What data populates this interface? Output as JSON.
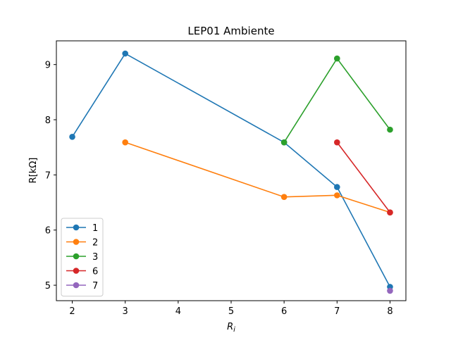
{
  "chart_data": {
    "type": "line",
    "title": "LEP01 Ambiente",
    "xlabel": "R",
    "xlabel_subscript": "i",
    "ylabel": "R[kΩ]",
    "xlim": [
      1.7,
      8.3
    ],
    "ylim": [
      4.72,
      9.43
    ],
    "xticks": [
      2,
      3,
      4,
      5,
      6,
      7,
      8
    ],
    "yticks": [
      5,
      6,
      7,
      8,
      9
    ],
    "grid": false,
    "legend_position": "lower-left",
    "series": [
      {
        "name": "1",
        "color": "#1f77b4",
        "points": [
          [
            2,
            7.69
          ],
          [
            3,
            9.2
          ],
          [
            6,
            7.59
          ],
          [
            7,
            6.78
          ],
          [
            8,
            4.97
          ]
        ]
      },
      {
        "name": "2",
        "color": "#ff7f0e",
        "points": [
          [
            3,
            7.59
          ],
          [
            6,
            6.6
          ],
          [
            7,
            6.63
          ],
          [
            8,
            6.32
          ]
        ]
      },
      {
        "name": "3",
        "color": "#2ca02c",
        "points": [
          [
            6,
            7.59
          ],
          [
            7,
            9.11
          ],
          [
            8,
            7.82
          ]
        ]
      },
      {
        "name": "6",
        "color": "#d62728",
        "points": [
          [
            7,
            7.59
          ],
          [
            8,
            6.32
          ]
        ]
      },
      {
        "name": "7",
        "color": "#9467bd",
        "points": [
          [
            8,
            4.9
          ]
        ]
      }
    ]
  }
}
